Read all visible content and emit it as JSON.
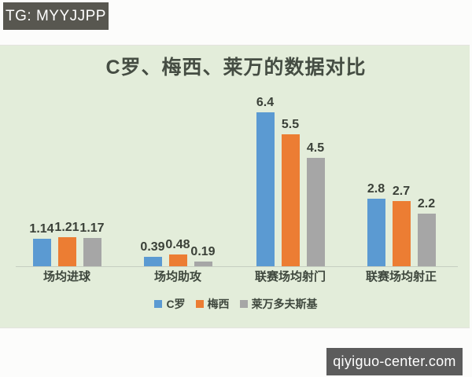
{
  "overlays": {
    "tg_badge": "TG: MYYJJPP",
    "watermark": "qiyiguo-center.com"
  },
  "chart_data": {
    "type": "bar",
    "title": "C罗、梅西、莱万的数据对比",
    "categories": [
      "场均进球",
      "场均助攻",
      "联赛场均射门",
      "联赛场均射正"
    ],
    "series": [
      {
        "name": "C罗",
        "color": "#5b9ad2",
        "values": [
          1.14,
          0.39,
          6.4,
          2.8
        ],
        "labels": [
          "1.14",
          "0.39",
          "6.4",
          "2.8"
        ]
      },
      {
        "name": "梅西",
        "color": "#ec7d33",
        "values": [
          1.21,
          0.48,
          5.5,
          2.7
        ],
        "labels": [
          "1.21",
          "0.48",
          "5.5",
          "2.7"
        ]
      },
      {
        "name": "莱万多夫斯基",
        "color": "#a6a6a6",
        "values": [
          1.17,
          0.19,
          4.5,
          2.2
        ],
        "labels": [
          "1.17",
          "0.19",
          "4.5",
          "2.2"
        ]
      }
    ],
    "legend_position": "bottom",
    "grid": false,
    "value_axis_visible": false,
    "xlabel": "",
    "ylabel": "",
    "background": "#e3edda",
    "text_color": "#3e473d"
  }
}
